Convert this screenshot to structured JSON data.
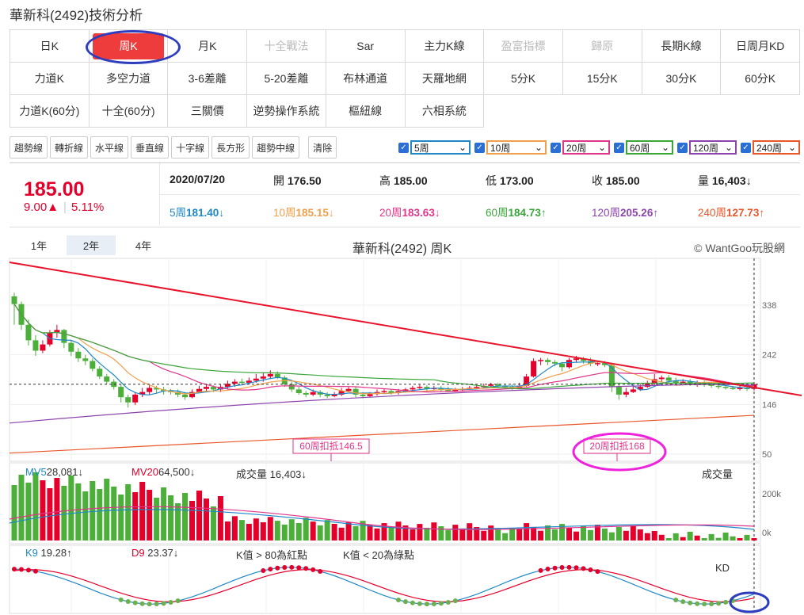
{
  "page": {
    "title": "華新科(2492)技術分析"
  },
  "menu": {
    "rows": [
      [
        {
          "label": "日K",
          "state": "normal"
        },
        {
          "label": "周K",
          "state": "active"
        },
        {
          "label": "月K",
          "state": "normal"
        },
        {
          "label": "十全戰法",
          "state": "disabled"
        },
        {
          "label": "Sar",
          "state": "normal"
        },
        {
          "label": "主力K線",
          "state": "normal"
        },
        {
          "label": "盈富指標",
          "state": "disabled"
        },
        {
          "label": "歸原",
          "state": "disabled"
        },
        {
          "label": "長期K線",
          "state": "normal"
        },
        {
          "label": "日周月KD",
          "state": "normal"
        }
      ],
      [
        {
          "label": "力道K",
          "state": "normal"
        },
        {
          "label": "多空力道",
          "state": "normal"
        },
        {
          "label": "3-6差離",
          "state": "normal"
        },
        {
          "label": "5-20差離",
          "state": "normal"
        },
        {
          "label": "布林通道",
          "state": "normal"
        },
        {
          "label": "天羅地網",
          "state": "normal"
        },
        {
          "label": "5分K",
          "state": "normal"
        },
        {
          "label": "15分K",
          "state": "normal"
        },
        {
          "label": "30分K",
          "state": "normal"
        },
        {
          "label": "60分K",
          "state": "normal"
        }
      ],
      [
        {
          "label": "力道K(60分)",
          "state": "normal"
        },
        {
          "label": "十全(60分)",
          "state": "normal"
        },
        {
          "label": "三關價",
          "state": "normal"
        },
        {
          "label": "逆勢操作系統",
          "state": "normal"
        },
        {
          "label": "樞紐線",
          "state": "normal"
        },
        {
          "label": "六相系統",
          "state": "normal"
        }
      ]
    ]
  },
  "toolbar": {
    "buttons": [
      "趨勢線",
      "轉折線",
      "水平線",
      "垂直線",
      "十字線",
      "長方形",
      "趨勢中線",
      "清除"
    ]
  },
  "ma_selectors": [
    {
      "label": "5周",
      "color": "#1e88c8"
    },
    {
      "label": "10周",
      "color": "#f0a04b"
    },
    {
      "label": "20周",
      "color": "#e0358a"
    },
    {
      "label": "60周",
      "color": "#3aa63a"
    },
    {
      "label": "120周",
      "color": "#8e44ad"
    },
    {
      "label": "240周",
      "color": "#e8572a"
    }
  ],
  "quote": {
    "price": "185.00",
    "change": "9.00▲",
    "change_pct": "5.11%",
    "date": "2020/07/20",
    "open_label": "開",
    "open": "176.50",
    "high_label": "高",
    "high": "185.00",
    "low_label": "低",
    "low": "173.00",
    "close_label": "收",
    "close": "185.00",
    "volume_label": "量",
    "volume": "16,403",
    "volume_arrow": "↓"
  },
  "ma_values": [
    {
      "label": "5周",
      "value": "181.40",
      "arrow": "↓",
      "color": "#1e88c8"
    },
    {
      "label": "10周",
      "value": "185.15",
      "arrow": "↓",
      "color": "#f0a04b"
    },
    {
      "label": "20周",
      "value": "183.63",
      "arrow": "↓",
      "color": "#e0358a"
    },
    {
      "label": "60周",
      "value": "184.73",
      "arrow": "↑",
      "color": "#3aa63a"
    },
    {
      "label": "120周",
      "value": "205.26",
      "arrow": "↑",
      "color": "#8e44ad"
    },
    {
      "label": "240周",
      "value": "127.73",
      "arrow": "↑",
      "color": "#e8572a"
    }
  ],
  "range_tabs": [
    {
      "label": "1年",
      "active": false
    },
    {
      "label": "2年",
      "active": true
    },
    {
      "label": "4年",
      "active": false
    }
  ],
  "chart_title": "華新科(2492) 周K",
  "copyright": "© WantGoo玩股網",
  "annotations": {
    "ma60_deduct": "60周扣抵146.5",
    "ma20_deduct": "20周扣抵168"
  },
  "volume_panel": {
    "mv5_label": "MV5",
    "mv5": "28,081",
    "mv5_arrow": "↓",
    "mv20_label": "MV20",
    "mv20": "64,500",
    "mv20_arrow": "↓",
    "vol_label": "成交量",
    "vol": "16,403",
    "vol_arrow": "↓",
    "right_label": "成交量"
  },
  "kd_panel": {
    "k_label": "K9",
    "k": "19.28",
    "k_arrow": "↑",
    "d_label": "D9",
    "d": "23.37",
    "d_arrow": "↓",
    "note1": "K值 > 80為紅點",
    "note2": "K值 < 20為綠點",
    "right_label": "KD"
  },
  "colors": {
    "up": "#e4002b",
    "down": "#4caf3a",
    "trendline": "#e8142b",
    "highlight_magenta": "#ee22dd",
    "highlight_blue": "#2d3dbd"
  },
  "chart_data": {
    "type": "candlestick",
    "title": "華新科(2492) 周K",
    "y_ticks": [
      338,
      242,
      146,
      50
    ],
    "vol_ticks": [
      "200k",
      "0k"
    ],
    "candles": [
      [
        355,
        340,
        362,
        300
      ],
      [
        340,
        300,
        345,
        290
      ],
      [
        300,
        270,
        310,
        260
      ],
      [
        270,
        250,
        280,
        240
      ],
      [
        250,
        262,
        270,
        245
      ],
      [
        262,
        285,
        290,
        258
      ],
      [
        285,
        290,
        300,
        275
      ],
      [
        290,
        265,
        292,
        255
      ],
      [
        265,
        248,
        270,
        240
      ],
      [
        248,
        235,
        255,
        228
      ],
      [
        235,
        230,
        242,
        222
      ],
      [
        230,
        215,
        235,
        210
      ],
      [
        215,
        200,
        220,
        195
      ],
      [
        200,
        190,
        205,
        185
      ],
      [
        190,
        180,
        195,
        175
      ],
      [
        180,
        160,
        185,
        150
      ],
      [
        160,
        150,
        165,
        140
      ],
      [
        150,
        165,
        170,
        145
      ],
      [
        165,
        170,
        178,
        160
      ],
      [
        170,
        178,
        185,
        165
      ],
      [
        178,
        175,
        182,
        168
      ],
      [
        175,
        172,
        180,
        165
      ],
      [
        172,
        170,
        176,
        165
      ],
      [
        170,
        165,
        175,
        160
      ],
      [
        165,
        160,
        170,
        155
      ],
      [
        160,
        170,
        175,
        158
      ],
      [
        170,
        176,
        182,
        168
      ],
      [
        176,
        180,
        186,
        172
      ],
      [
        180,
        175,
        183,
        170
      ],
      [
        175,
        180,
        185,
        170
      ],
      [
        180,
        186,
        192,
        175
      ],
      [
        186,
        190,
        195,
        180
      ],
      [
        190,
        188,
        196,
        184
      ],
      [
        188,
        192,
        198,
        185
      ],
      [
        192,
        196,
        205,
        188
      ],
      [
        196,
        200,
        208,
        190
      ],
      [
        200,
        205,
        212,
        195
      ],
      [
        205,
        198,
        210,
        195
      ],
      [
        198,
        185,
        202,
        180
      ],
      [
        185,
        175,
        190,
        170
      ],
      [
        175,
        168,
        180,
        165
      ],
      [
        168,
        165,
        172,
        160
      ],
      [
        165,
        170,
        175,
        162
      ],
      [
        170,
        165,
        174,
        160
      ],
      [
        165,
        162,
        170,
        158
      ],
      [
        162,
        165,
        170,
        160
      ],
      [
        165,
        172,
        178,
        162
      ],
      [
        172,
        176,
        180,
        170
      ],
      [
        176,
        165,
        180,
        160
      ],
      [
        165,
        162,
        170,
        158
      ],
      [
        162,
        166,
        170,
        160
      ],
      [
        166,
        170,
        175,
        163
      ],
      [
        170,
        172,
        176,
        168
      ],
      [
        172,
        168,
        176,
        165
      ],
      [
        168,
        172,
        176,
        165
      ],
      [
        172,
        175,
        178,
        170
      ],
      [
        175,
        178,
        182,
        172
      ],
      [
        178,
        180,
        184,
        175
      ],
      [
        180,
        176,
        183,
        172
      ],
      [
        176,
        178,
        182,
        172
      ],
      [
        178,
        175,
        182,
        170
      ],
      [
        175,
        172,
        180,
        170
      ],
      [
        172,
        174,
        178,
        170
      ],
      [
        174,
        176,
        180,
        172
      ],
      [
        176,
        178,
        182,
        174
      ],
      [
        178,
        180,
        184,
        176
      ],
      [
        180,
        182,
        186,
        178
      ],
      [
        182,
        185,
        188,
        180
      ],
      [
        185,
        182,
        188,
        178
      ],
      [
        182,
        180,
        186,
        176
      ],
      [
        180,
        178,
        185,
        174
      ],
      [
        178,
        182,
        188,
        176
      ],
      [
        182,
        200,
        205,
        180
      ],
      [
        200,
        230,
        235,
        198
      ],
      [
        230,
        232,
        236,
        222
      ],
      [
        232,
        228,
        236,
        222
      ],
      [
        228,
        225,
        232,
        220
      ],
      [
        225,
        218,
        228,
        210
      ],
      [
        218,
        232,
        236,
        215
      ],
      [
        232,
        235,
        240,
        228
      ],
      [
        235,
        230,
        238,
        225
      ],
      [
        230,
        225,
        236,
        220
      ],
      [
        225,
        226,
        230,
        220
      ],
      [
        226,
        222,
        230,
        218
      ],
      [
        222,
        180,
        225,
        170
      ],
      [
        180,
        165,
        185,
        155
      ],
      [
        165,
        170,
        178,
        160
      ],
      [
        170,
        175,
        182,
        168
      ],
      [
        175,
        180,
        185,
        172
      ],
      [
        180,
        186,
        192,
        178
      ],
      [
        186,
        195,
        205,
        180
      ],
      [
        195,
        198,
        202,
        190
      ],
      [
        198,
        192,
        203,
        188
      ],
      [
        192,
        188,
        198,
        185
      ],
      [
        188,
        190,
        195,
        184
      ],
      [
        190,
        186,
        195,
        182
      ],
      [
        186,
        188,
        192,
        180
      ],
      [
        188,
        185,
        192,
        180
      ],
      [
        185,
        182,
        190,
        178
      ],
      [
        182,
        180,
        188,
        176
      ],
      [
        180,
        178,
        185,
        175
      ],
      [
        178,
        176,
        182,
        174
      ],
      [
        176,
        178,
        182,
        173
      ],
      [
        178,
        176,
        182,
        172
      ],
      [
        176,
        185,
        185,
        173
      ]
    ]
  }
}
